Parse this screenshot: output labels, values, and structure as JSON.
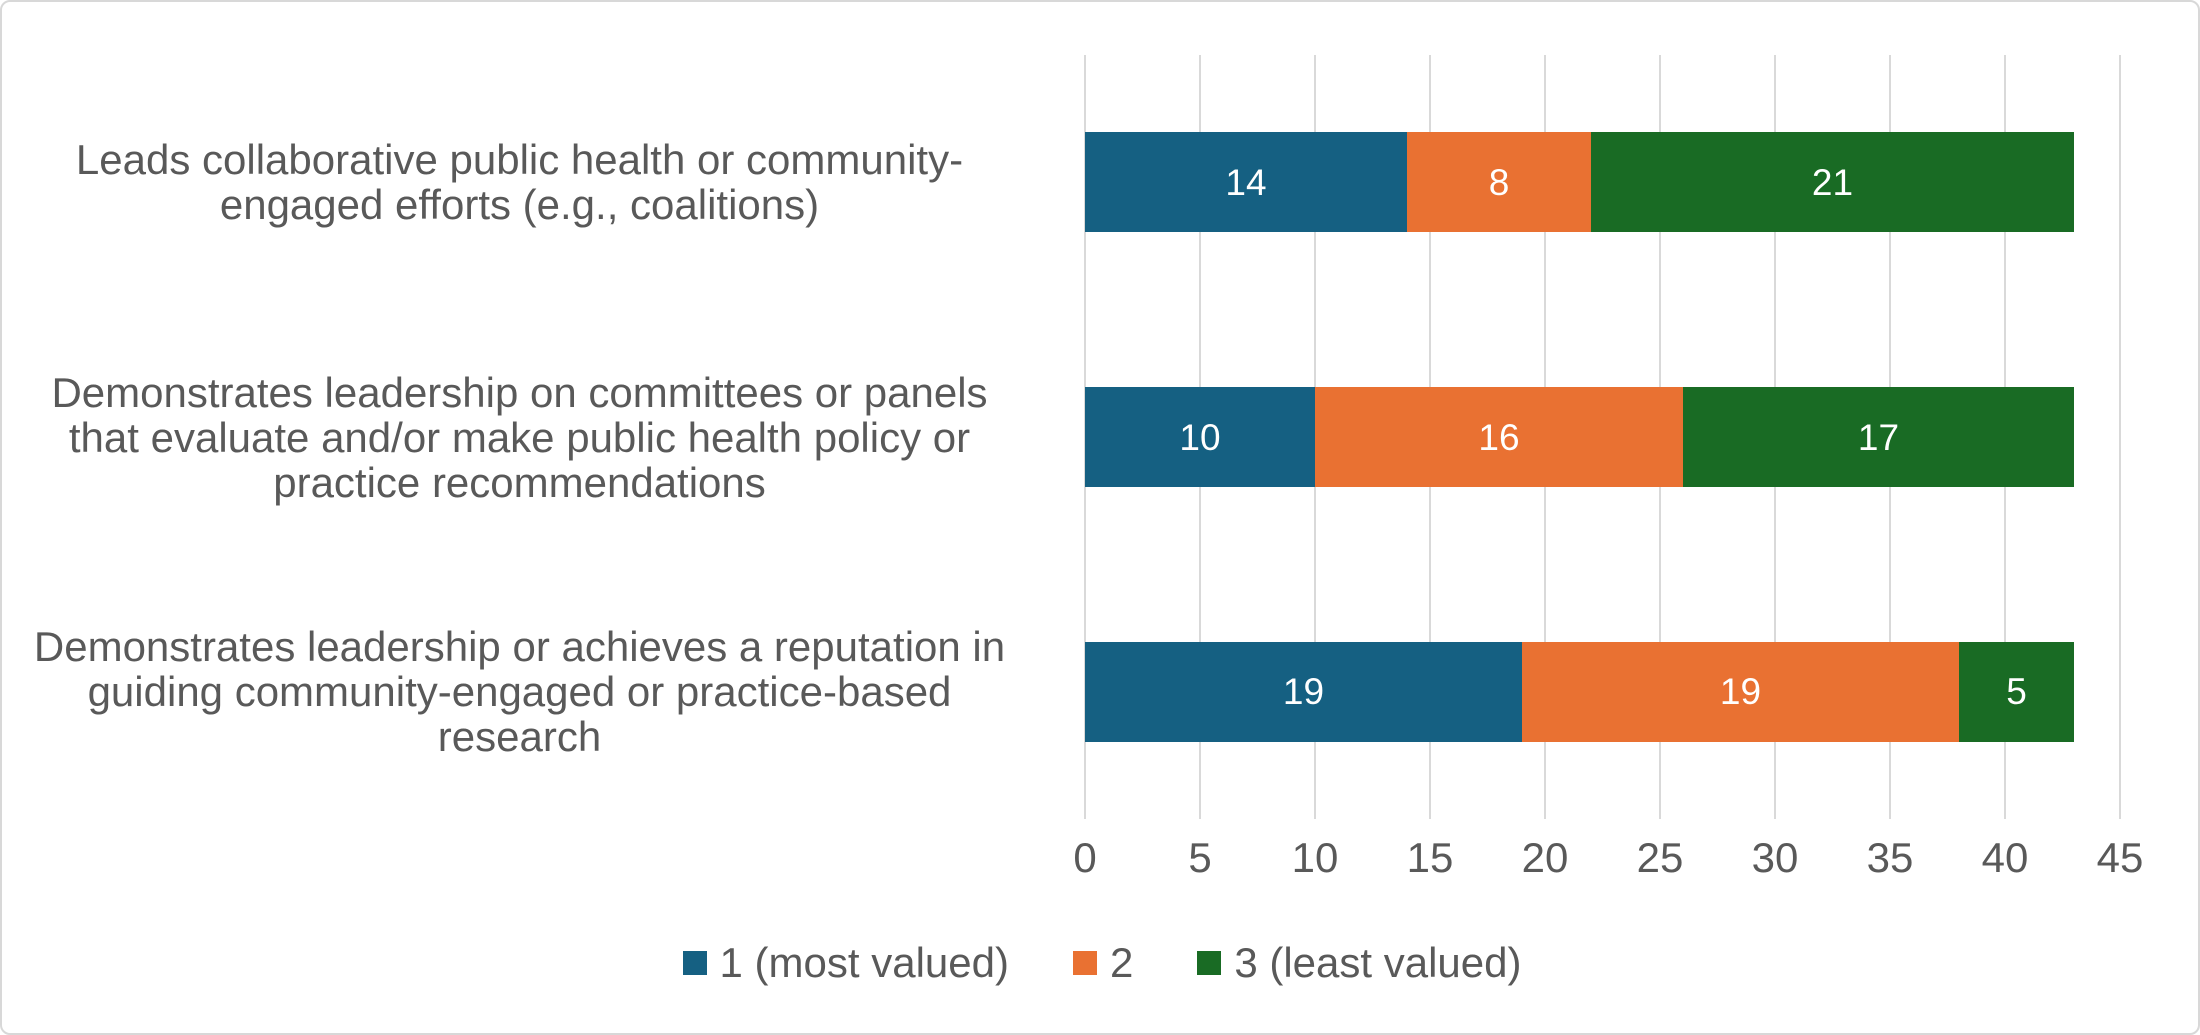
{
  "chart_data": {
    "type": "bar",
    "orientation": "horizontal",
    "stacked": true,
    "title": "",
    "xlabel": "",
    "ylabel": "",
    "xlim": [
      0,
      45
    ],
    "x_ticks": [
      0,
      5,
      10,
      15,
      20,
      25,
      30,
      35,
      40,
      45
    ],
    "grid": true,
    "data_labels": true,
    "legend_position": "bottom",
    "categories": [
      "Leads collaborative public health or community-engaged efforts (e.g., coalitions)",
      "Demonstrates leadership on committees or panels that evaluate and/or make public health policy or practice recommendations",
      "Demonstrates leadership or achieves a reputation in guiding community-engaged or practice-based research"
    ],
    "series": [
      {
        "name": "1 (most valued)",
        "color": "#156082",
        "values": [
          14,
          10,
          19
        ]
      },
      {
        "name": "2",
        "color": "#E97132",
        "values": [
          8,
          16,
          19
        ]
      },
      {
        "name": "3 (least valued)",
        "color": "#196B24",
        "values": [
          21,
          17,
          5
        ]
      }
    ]
  },
  "colors": {
    "gridline": "#D9D9D9",
    "axis_text": "#595959",
    "data_label_text": "#FFFFFF",
    "frame_border": "#D8D8D8",
    "background": "#FFFFFF"
  }
}
